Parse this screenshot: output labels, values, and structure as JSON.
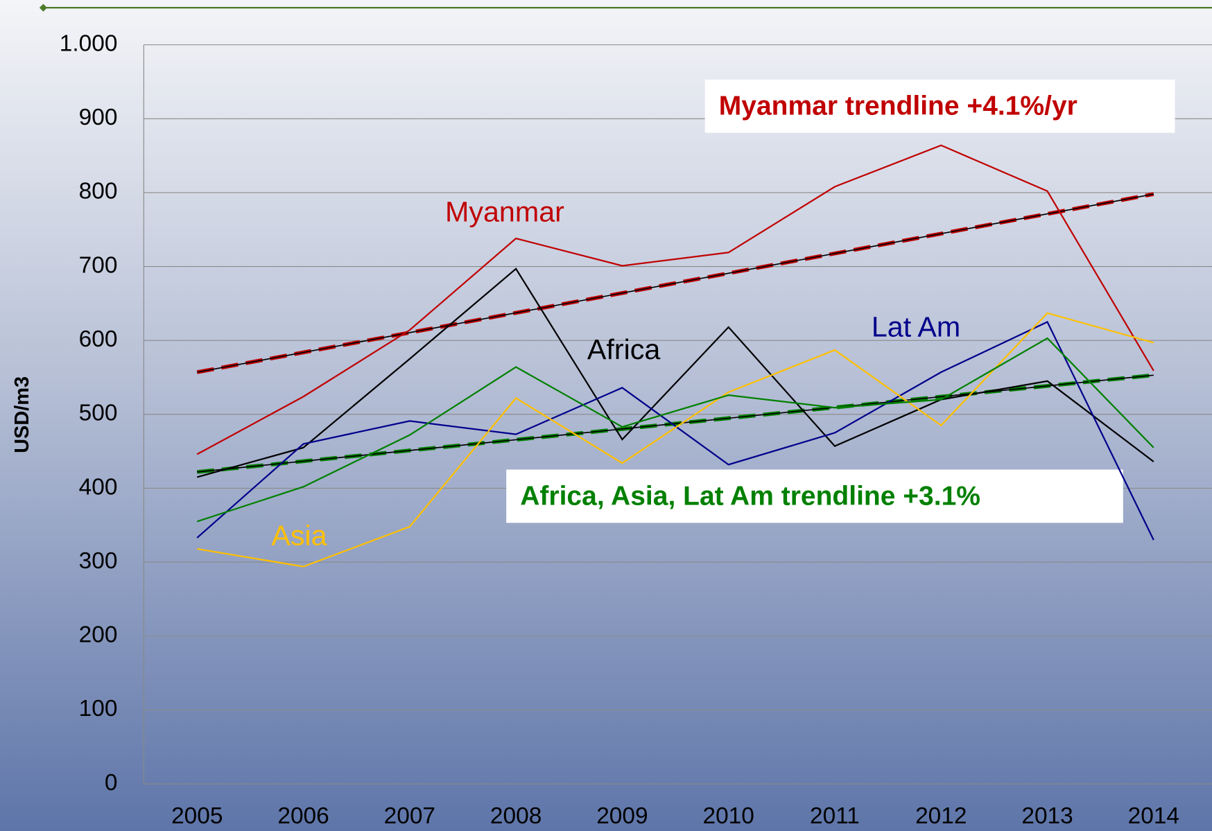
{
  "chart_data": {
    "type": "line",
    "y_label": "USD/m3",
    "categories": [
      "2005",
      "2006",
      "2007",
      "2008",
      "2009",
      "2010",
      "2011",
      "2012",
      "2013",
      "2014"
    ],
    "series": [
      {
        "name": "Myanmar",
        "color": "#c00000",
        "values": [
          446,
          524,
          614,
          738,
          701,
          719,
          808,
          864,
          802,
          559
        ]
      },
      {
        "name": "Africa",
        "color": "#000000",
        "values": [
          415,
          455,
          575,
          697,
          466,
          618,
          457,
          520,
          545,
          436
        ]
      },
      {
        "name": "Lat Am",
        "color": "#00008b",
        "values": [
          333,
          460,
          491,
          473,
          536,
          432,
          475,
          557,
          625,
          330
        ]
      },
      {
        "name": "Asia",
        "color": "#ffc000",
        "values": [
          318,
          294,
          348,
          522,
          434,
          530,
          587,
          485,
          637,
          597
        ]
      },
      {
        "color": "#008000",
        "values": [
          355,
          402,
          472,
          564,
          483,
          526,
          509,
          520,
          603,
          455
        ]
      }
    ],
    "trendlines": [
      {
        "label": "Myanmar trendline +4.1%/yr",
        "color": "#c00000",
        "values": [
          557,
          798
        ]
      },
      {
        "label": "Africa, Asia, Lat Am trendline +3.1%",
        "color": "#008000",
        "values": [
          422,
          553
        ]
      }
    ],
    "ylim": [
      0,
      1000
    ],
    "yticks": [
      0,
      100,
      200,
      300,
      400,
      500,
      600,
      700,
      800,
      900,
      {
        "value": 1000,
        "label": "1.000"
      }
    ],
    "grid": true
  }
}
